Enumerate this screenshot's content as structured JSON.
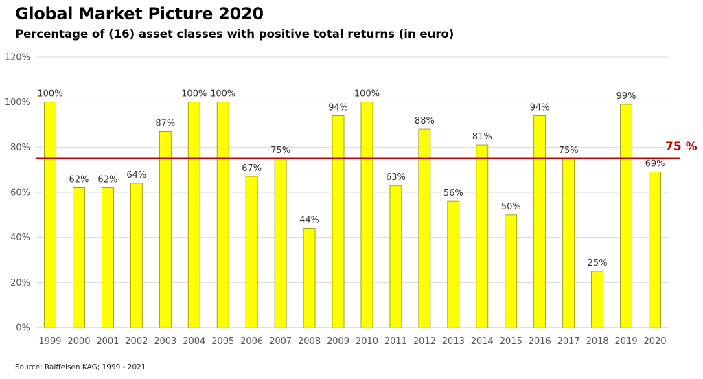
{
  "header": {
    "title": "Global Market Picture 2020",
    "subtitle": "Percentage of (16) asset classes with positive total returns (in euro)"
  },
  "footer": {
    "source": "Source: Raiffeisen KAG; 1999 - 2021"
  },
  "colors": {
    "bar_fill": "#ffff00",
    "bar_stroke": "#8c8c00",
    "reference_line": "#c00000",
    "grid": "#d9d9d9"
  },
  "chart_data": {
    "type": "bar",
    "title": "Global Market Picture 2020",
    "subtitle": "Percentage of (16) asset classes with positive total returns (in euro)",
    "xlabel": "",
    "ylabel": "",
    "categories": [
      "1999",
      "2000",
      "2001",
      "2002",
      "2003",
      "2004",
      "2005",
      "2006",
      "2007",
      "2008",
      "2009",
      "2010",
      "2011",
      "2012",
      "2013",
      "2014",
      "2015",
      "2016",
      "2017",
      "2018",
      "2019",
      "2020"
    ],
    "values": [
      100,
      62,
      62,
      64,
      87,
      100,
      100,
      67,
      75,
      44,
      94,
      100,
      63,
      88,
      56,
      81,
      50,
      94,
      75,
      25,
      99,
      69
    ],
    "data_labels": [
      "100%",
      "62%",
      "62%",
      "64%",
      "87%",
      "100%",
      "100%",
      "67%",
      "75%",
      "44%",
      "94%",
      "100%",
      "63%",
      "88%",
      "56%",
      "81%",
      "50%",
      "94%",
      "75%",
      "25%",
      "99%",
      "69%"
    ],
    "ylim": [
      0,
      120
    ],
    "y_ticks": [
      0,
      20,
      40,
      60,
      80,
      100,
      120
    ],
    "y_tick_labels": [
      "0%",
      "20%",
      "40%",
      "60%",
      "80%",
      "100%",
      "120%"
    ],
    "grid": true,
    "legend": "none",
    "reference_line": {
      "value": 75,
      "label": "75 %"
    }
  }
}
